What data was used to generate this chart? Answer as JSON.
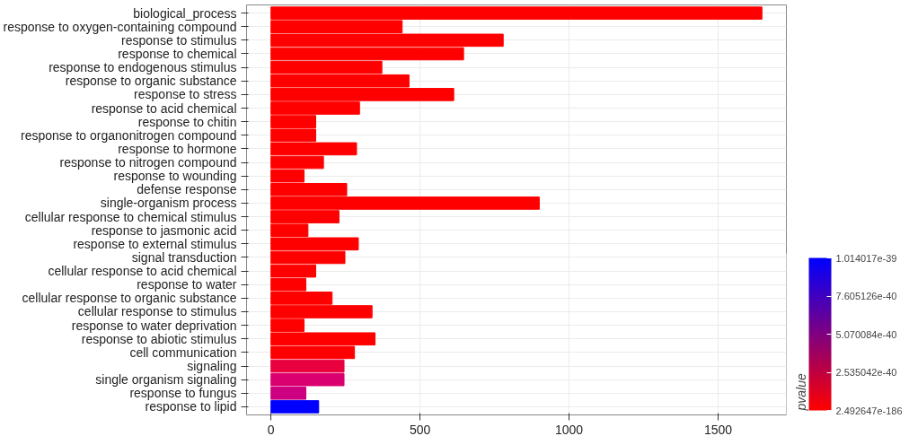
{
  "chart_data": {
    "type": "bar",
    "orientation": "horizontal",
    "clabel": "pvalue",
    "categories": [
      "biological_process",
      "response to oxygen-containing compound",
      "response to stimulus",
      "response to chemical",
      "response to endogenous stimulus",
      "response to organic substance",
      "response to stress",
      "response to acid chemical",
      "response to chitin",
      "response to organonitrogen compound",
      "response to hormone",
      "response to nitrogen compound",
      "response to wounding",
      "defense response",
      "single-organism process",
      "cellular response to chemical stimulus",
      "response to jasmonic acid",
      "response to external stimulus",
      "signal transduction",
      "cellular response to acid chemical",
      "response to water",
      "cellular response to organic substance",
      "cellular response to stimulus",
      "response to water deprivation",
      "response to abiotic stimulus",
      "cell communication",
      "signaling",
      "single organism signaling",
      "response to fungus",
      "response to lipid"
    ],
    "values": [
      1647,
      440,
      779,
      646,
      372,
      463,
      613,
      297,
      150,
      150,
      287,
      176,
      111,
      254,
      900,
      228,
      124,
      293,
      248,
      150,
      117,
      205,
      339,
      111,
      349,
      280,
      245,
      245,
      117,
      160
    ],
    "colors": [
      "#ff0000",
      "#ff0000",
      "#ff0000",
      "#ff0000",
      "#ff0000",
      "#ff0000",
      "#ff0000",
      "#ff0000",
      "#ff0000",
      "#ff0000",
      "#ff0000",
      "#ff0000",
      "#ff0000",
      "#ff0000",
      "#ff0000",
      "#ff0000",
      "#ff0000",
      "#ff0000",
      "#ff0000",
      "#ff0000",
      "#ff0000",
      "#ff0000",
      "#ff0000",
      "#ff0000",
      "#ff0000",
      "#ff0000",
      "#e8003f",
      "#db0070",
      "#cc0080",
      "#0000ff"
    ],
    "xlim": [
      -82,
      1729
    ],
    "xticks": [
      0,
      500,
      1000,
      1500
    ],
    "grid": true,
    "clim": [
      2.492647e-186,
      1.014017e-39
    ],
    "cticks": [
      {
        "value": 2.492647e-186,
        "label": "2.492647e-186"
      },
      {
        "value": 2.535042e-40,
        "label": "2.535042e-40"
      },
      {
        "value": 5.070084e-40,
        "label": "5.070084e-40"
      },
      {
        "value": 7.605126e-40,
        "label": "7.605126e-40"
      },
      {
        "value": 1.014017e-39,
        "label": "1.014017e-39"
      }
    ]
  }
}
